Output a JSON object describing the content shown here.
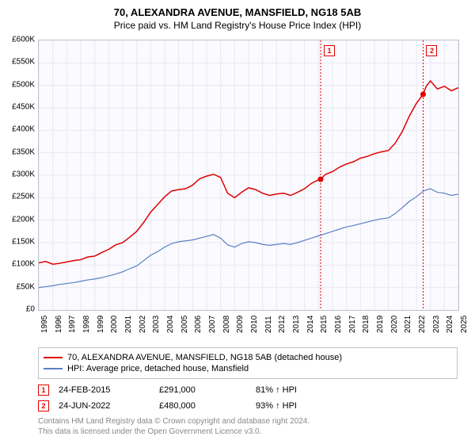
{
  "title": "70, ALEXANDRA AVENUE, MANSFIELD, NG18 5AB",
  "subtitle": "Price paid vs. HM Land Registry's House Price Index (HPI)",
  "chart": {
    "type": "line",
    "background_color": "#fafaff",
    "border_color": "#bfc2cc",
    "grid_color": "#e8e8f0",
    "ylim": [
      0,
      600000
    ],
    "ytick_step": 50000,
    "y_tick_labels": [
      "£0",
      "£50K",
      "£100K",
      "£150K",
      "£200K",
      "£250K",
      "£300K",
      "£350K",
      "£400K",
      "£450K",
      "£500K",
      "£550K",
      "£600K"
    ],
    "xlim": [
      1995,
      2025
    ],
    "x_tick_labels": [
      "1995",
      "1996",
      "1997",
      "1998",
      "1999",
      "2000",
      "2001",
      "2002",
      "2003",
      "2004",
      "2005",
      "2006",
      "2007",
      "2008",
      "2009",
      "2010",
      "2011",
      "2012",
      "2013",
      "2014",
      "2015",
      "2016",
      "2017",
      "2018",
      "2019",
      "2020",
      "2021",
      "2022",
      "2023",
      "2024",
      "2025"
    ],
    "series": [
      {
        "name": "property",
        "label": "70, ALEXANDRA AVENUE, MANSFIELD, NG18 5AB (detached house)",
        "color": "#e00000",
        "line_width": 1.5,
        "points": [
          [
            1995.0,
            105000
          ],
          [
            1995.5,
            108000
          ],
          [
            1996.0,
            102000
          ],
          [
            1996.5,
            104000
          ],
          [
            1997.0,
            107000
          ],
          [
            1997.5,
            110000
          ],
          [
            1998.0,
            112000
          ],
          [
            1998.5,
            118000
          ],
          [
            1999.0,
            120000
          ],
          [
            1999.5,
            128000
          ],
          [
            2000.0,
            135000
          ],
          [
            2000.5,
            145000
          ],
          [
            2001.0,
            150000
          ],
          [
            2001.5,
            162000
          ],
          [
            2002.0,
            175000
          ],
          [
            2002.5,
            195000
          ],
          [
            2003.0,
            218000
          ],
          [
            2003.5,
            235000
          ],
          [
            2004.0,
            252000
          ],
          [
            2004.5,
            265000
          ],
          [
            2005.0,
            268000
          ],
          [
            2005.5,
            270000
          ],
          [
            2006.0,
            278000
          ],
          [
            2006.5,
            292000
          ],
          [
            2007.0,
            298000
          ],
          [
            2007.5,
            302000
          ],
          [
            2008.0,
            295000
          ],
          [
            2008.5,
            260000
          ],
          [
            2009.0,
            250000
          ],
          [
            2009.5,
            262000
          ],
          [
            2010.0,
            272000
          ],
          [
            2010.5,
            268000
          ],
          [
            2011.0,
            260000
          ],
          [
            2011.5,
            255000
          ],
          [
            2012.0,
            258000
          ],
          [
            2012.5,
            260000
          ],
          [
            2013.0,
            255000
          ],
          [
            2013.5,
            262000
          ],
          [
            2014.0,
            270000
          ],
          [
            2014.5,
            282000
          ],
          [
            2015.0,
            290000
          ],
          [
            2015.15,
            291000
          ],
          [
            2015.5,
            302000
          ],
          [
            2016.0,
            308000
          ],
          [
            2016.5,
            318000
          ],
          [
            2017.0,
            325000
          ],
          [
            2017.5,
            330000
          ],
          [
            2018.0,
            338000
          ],
          [
            2018.5,
            342000
          ],
          [
            2019.0,
            348000
          ],
          [
            2019.5,
            352000
          ],
          [
            2020.0,
            355000
          ],
          [
            2020.5,
            372000
          ],
          [
            2021.0,
            398000
          ],
          [
            2021.5,
            432000
          ],
          [
            2022.0,
            460000
          ],
          [
            2022.48,
            480000
          ],
          [
            2022.7,
            498000
          ],
          [
            2023.0,
            510000
          ],
          [
            2023.5,
            492000
          ],
          [
            2024.0,
            498000
          ],
          [
            2024.5,
            488000
          ],
          [
            2025.0,
            495000
          ]
        ]
      },
      {
        "name": "hpi",
        "label": "HPI: Average price, detached house, Mansfield",
        "color": "#5b7fc7",
        "line_width": 1.2,
        "points": [
          [
            1995.0,
            50000
          ],
          [
            1995.5,
            52000
          ],
          [
            1996.0,
            54000
          ],
          [
            1996.5,
            57000
          ],
          [
            1997.0,
            59000
          ],
          [
            1997.5,
            61000
          ],
          [
            1998.0,
            64000
          ],
          [
            1998.5,
            67000
          ],
          [
            1999.0,
            69000
          ],
          [
            1999.5,
            72000
          ],
          [
            2000.0,
            76000
          ],
          [
            2000.5,
            80000
          ],
          [
            2001.0,
            85000
          ],
          [
            2001.5,
            92000
          ],
          [
            2002.0,
            98000
          ],
          [
            2002.5,
            110000
          ],
          [
            2003.0,
            122000
          ],
          [
            2003.5,
            130000
          ],
          [
            2004.0,
            140000
          ],
          [
            2004.5,
            148000
          ],
          [
            2005.0,
            152000
          ],
          [
            2005.5,
            154000
          ],
          [
            2006.0,
            156000
          ],
          [
            2006.5,
            160000
          ],
          [
            2007.0,
            164000
          ],
          [
            2007.5,
            168000
          ],
          [
            2008.0,
            160000
          ],
          [
            2008.5,
            145000
          ],
          [
            2009.0,
            140000
          ],
          [
            2009.5,
            148000
          ],
          [
            2010.0,
            152000
          ],
          [
            2010.5,
            150000
          ],
          [
            2011.0,
            146000
          ],
          [
            2011.5,
            144000
          ],
          [
            2012.0,
            146000
          ],
          [
            2012.5,
            148000
          ],
          [
            2013.0,
            146000
          ],
          [
            2013.5,
            150000
          ],
          [
            2014.0,
            155000
          ],
          [
            2014.5,
            160000
          ],
          [
            2015.0,
            165000
          ],
          [
            2015.5,
            170000
          ],
          [
            2016.0,
            175000
          ],
          [
            2016.5,
            180000
          ],
          [
            2017.0,
            185000
          ],
          [
            2017.5,
            188000
          ],
          [
            2018.0,
            192000
          ],
          [
            2018.5,
            196000
          ],
          [
            2019.0,
            200000
          ],
          [
            2019.5,
            203000
          ],
          [
            2020.0,
            205000
          ],
          [
            2020.5,
            215000
          ],
          [
            2021.0,
            228000
          ],
          [
            2021.5,
            242000
          ],
          [
            2022.0,
            252000
          ],
          [
            2022.5,
            265000
          ],
          [
            2023.0,
            270000
          ],
          [
            2023.5,
            262000
          ],
          [
            2024.0,
            260000
          ],
          [
            2024.5,
            255000
          ],
          [
            2025.0,
            258000
          ]
        ]
      }
    ],
    "sale_markers": [
      {
        "num": "1",
        "x": 2015.15,
        "y": 291000,
        "box_x": 2015.15,
        "box_top_offset": -8
      },
      {
        "num": "2",
        "x": 2022.48,
        "y": 480000,
        "box_x": 2022.48,
        "box_top_offset": -8
      }
    ],
    "marker_line_color": "#e00000",
    "marker_line_dash": "2,2",
    "marker_dot_color": "#e00000",
    "marker_dot_radius": 3.5
  },
  "legend": {
    "items": [
      {
        "color": "#e00000",
        "label": "70, ALEXANDRA AVENUE, MANSFIELD, NG18 5AB (detached house)"
      },
      {
        "color": "#5b7fc7",
        "label": "HPI: Average price, detached house, Mansfield"
      }
    ]
  },
  "sales": [
    {
      "num": "1",
      "date": "24-FEB-2015",
      "price": "£291,000",
      "hpi": "81% ↑ HPI"
    },
    {
      "num": "2",
      "date": "24-JUN-2022",
      "price": "£480,000",
      "hpi": "93% ↑ HPI"
    }
  ],
  "attribution": {
    "line1": "Contains HM Land Registry data © Crown copyright and database right 2024.",
    "line2": "This data is licensed under the Open Government Licence v3.0."
  }
}
